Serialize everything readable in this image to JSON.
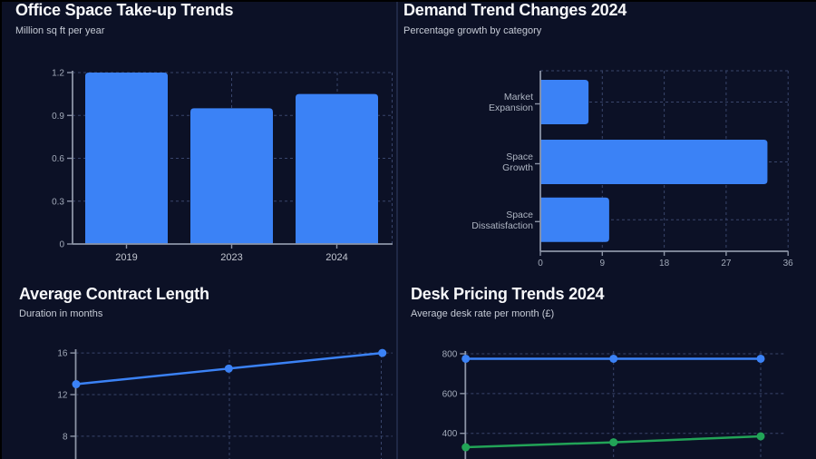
{
  "page": {
    "background": "#0c1126",
    "divider_color": "#1f2845",
    "edge_color": "#000000",
    "accent_blue": "#3b82f6",
    "accent_green": "#22a457",
    "grid_color": "#39456b",
    "axis_color": "#8c94a6",
    "tick_label_color": "#a2aab9",
    "category_label_color": "#c3c7d1"
  },
  "chart_data": [
    {
      "type": "bar",
      "orientation": "vertical",
      "title": "Office Space Take-up Trends",
      "subtitle": "Million sq ft per year",
      "categories": [
        "2019",
        "2023",
        "2024"
      ],
      "values": [
        1.2,
        0.95,
        1.05
      ],
      "ylim": [
        0,
        1.2
      ],
      "yticks": [
        0,
        0.3,
        0.6,
        0.9,
        1.2
      ],
      "grid": "dashed",
      "legend": "none",
      "bar_color": "#3b82f6"
    },
    {
      "type": "bar",
      "orientation": "horizontal",
      "title": "Demand Trend Changes 2024",
      "subtitle": "Percentage growth by category",
      "categories": [
        "Market Expansion",
        "Space Growth",
        "Space Dissatisfaction"
      ],
      "values": [
        7,
        33,
        10
      ],
      "xlim": [
        0,
        36
      ],
      "xticks": [
        0,
        9,
        18,
        27,
        36
      ],
      "grid": "dashed",
      "legend": "none",
      "bar_color": "#3b82f6"
    },
    {
      "type": "line",
      "title": "Average Contract Length",
      "subtitle": "Duration in months",
      "yticks": [
        8,
        12,
        16
      ],
      "grid": "dashed",
      "legend": "none",
      "x_axis_labels_visible": false,
      "clipped_at_bottom": true,
      "series": [
        {
          "color": "#3b82f6",
          "values": [
            13,
            14.5,
            16
          ]
        }
      ]
    },
    {
      "type": "line",
      "title": "Desk Pricing Trends 2024",
      "subtitle": "Average desk rate per month (£)",
      "yticks": [
        400,
        600,
        800
      ],
      "grid": "dashed",
      "legend": "none",
      "x_axis_labels_visible": false,
      "clipped_at_bottom": true,
      "series": [
        {
          "color": "#3b82f6",
          "values": [
            775,
            775,
            775
          ]
        },
        {
          "color": "#22a457",
          "values": [
            330,
            355,
            385
          ]
        }
      ]
    }
  ]
}
